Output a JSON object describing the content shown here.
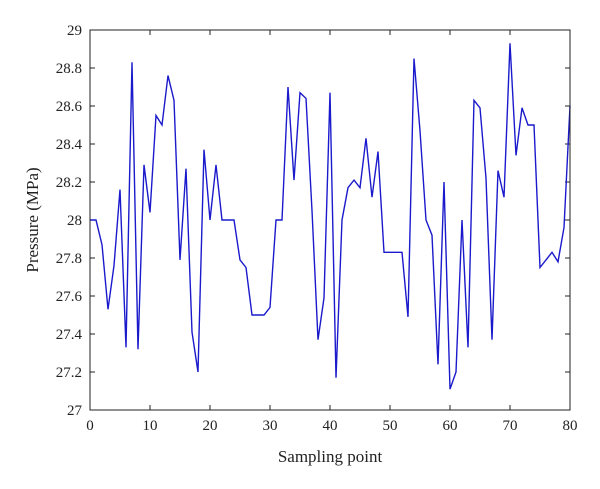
{
  "chart_data": {
    "type": "line",
    "xlabel": "Sampling point",
    "ylabel": "Pressure (MPa)",
    "xlim": [
      0,
      80
    ],
    "ylim": [
      27,
      29
    ],
    "xticks": [
      0,
      10,
      20,
      30,
      40,
      50,
      60,
      70,
      80
    ],
    "xtick_labels": [
      "0",
      "10",
      "20",
      "30",
      "40",
      "50",
      "60",
      "70",
      "80"
    ],
    "yticks": [
      27,
      27.2,
      27.4,
      27.6,
      27.8,
      28,
      28.2,
      28.4,
      28.6,
      28.8,
      29
    ],
    "ytick_labels": [
      "27",
      "27.2",
      "27.4",
      "27.6",
      "27.8",
      "28",
      "28.2",
      "28.4",
      "28.6",
      "28.8",
      "29"
    ],
    "grid": false,
    "series": [
      {
        "color": "#1a1acc",
        "x": [
          0,
          1,
          2,
          3,
          4,
          5,
          6,
          7,
          8,
          9,
          10,
          11,
          12,
          13,
          14,
          15,
          16,
          17,
          18,
          19,
          20,
          21,
          22,
          23,
          24,
          25,
          26,
          27,
          28,
          29,
          30,
          31,
          32,
          33,
          34,
          35,
          36,
          37,
          38,
          39,
          40,
          41,
          42,
          43,
          44,
          45,
          46,
          47,
          48,
          49,
          50,
          51,
          52,
          53,
          54,
          55,
          56,
          57,
          58,
          59,
          60,
          61,
          62,
          63,
          64,
          65,
          66,
          67,
          68,
          69,
          70,
          71,
          72,
          73,
          74,
          75,
          76,
          77,
          78,
          79,
          80
        ],
        "values": [
          28.0,
          28.0,
          27.87,
          27.53,
          27.76,
          28.16,
          27.33,
          28.83,
          27.32,
          28.29,
          28.04,
          28.55,
          28.5,
          28.76,
          28.63,
          27.79,
          28.27,
          27.41,
          27.2,
          28.37,
          28.0,
          28.29,
          28.0,
          28.0,
          28.0,
          27.79,
          27.75,
          27.5,
          27.5,
          27.5,
          27.54,
          28.0,
          28.0,
          28.7,
          28.21,
          28.67,
          28.64,
          28.05,
          27.37,
          27.59,
          28.67,
          27.17,
          28.0,
          28.17,
          28.21,
          28.17,
          28.43,
          28.12,
          28.36,
          27.83,
          27.83,
          27.83,
          27.83,
          27.49,
          28.85,
          28.47,
          28.0,
          27.92,
          27.24,
          28.2,
          27.11,
          27.2,
          28.0,
          27.33,
          28.63,
          28.59,
          28.22,
          27.37,
          28.26,
          28.12,
          28.93,
          28.34,
          28.59,
          28.5,
          28.5,
          27.75,
          27.79,
          27.83,
          27.78,
          27.96,
          28.6
        ]
      }
    ]
  }
}
